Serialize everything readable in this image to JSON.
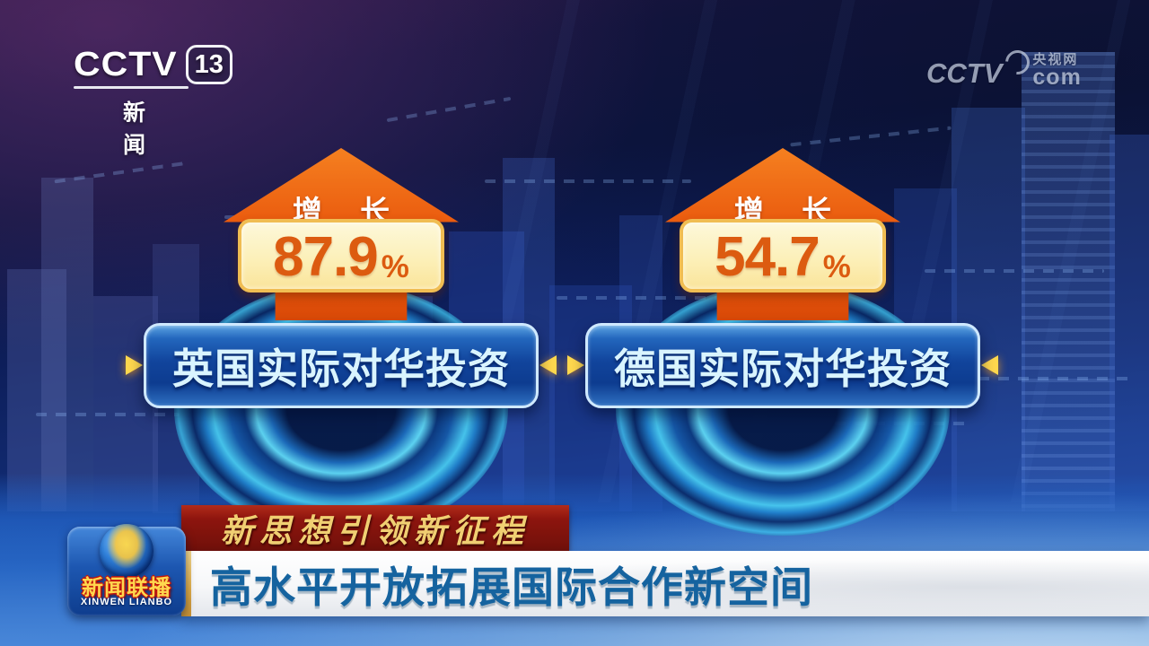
{
  "chart_data": {
    "type": "bar",
    "categories": [
      "英国实际对华投资",
      "德国实际对华投资"
    ],
    "values": [
      87.9,
      54.7
    ],
    "unit": "%",
    "value_label": "增长",
    "title": "高水平开放拓展国际合作新空间",
    "legend_position": "none",
    "grid": false
  },
  "header": {
    "channel_logo": {
      "network": "CCTV",
      "channel_number": "13",
      "channel_name": "新 闻"
    },
    "watermark": {
      "network": "CCTV",
      "site_name": "央视网",
      "domain": "com"
    }
  },
  "cards": [
    {
      "growth_label": "增 长",
      "value": "87.9",
      "percent_sign": "%",
      "title": "英国实际对华投资"
    },
    {
      "growth_label": "增 长",
      "value": "54.7",
      "percent_sign": "%",
      "title": "德国实际对华投资"
    }
  ],
  "banner": {
    "tagline": "新思想引领新征程",
    "headline": "高水平开放拓展国际合作新空间"
  },
  "program_logo": {
    "name": "新闻联播",
    "romanized": "XINWEN LIANBO"
  },
  "colors": {
    "arrow_orange": "#ea5a0e",
    "percent_box_bg": "#fcf0b9",
    "percent_box_border": "#f0bd52",
    "percent_text": "#dc5b10",
    "label_box_blue": "#0d3c90",
    "label_text": "#d9f4ff",
    "pointer_gold": "#ffd84e",
    "disc_cyan": "#48caf0",
    "tagline_bg_red": "#8d150e",
    "tagline_text_gold": "#f0cf72",
    "headline_bg": "#ffffff",
    "headline_text_blue": "#15639f",
    "background_navy": "#0c1540"
  }
}
